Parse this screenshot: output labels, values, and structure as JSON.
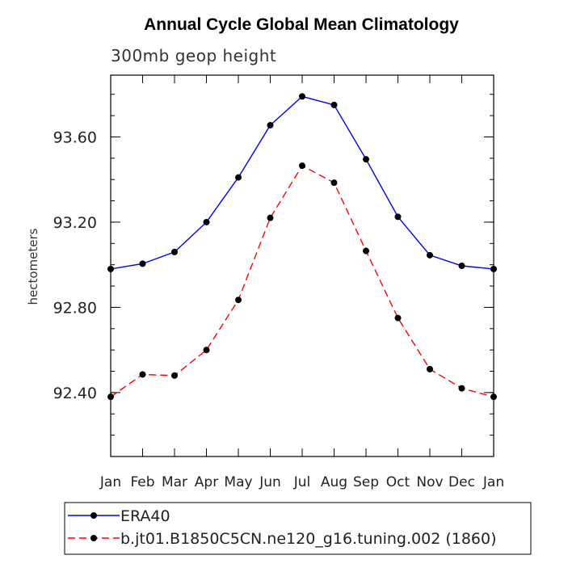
{
  "chart_data": {
    "type": "line",
    "title": "Annual Cycle Global Mean Climatology",
    "subtitle": "300mb geop height",
    "xlabel": "",
    "ylabel": "hectometers",
    "categories": [
      "Jan",
      "Feb",
      "Mar",
      "Apr",
      "May",
      "Jun",
      "Jul",
      "Aug",
      "Sep",
      "Oct",
      "Nov",
      "Dec",
      "Jan"
    ],
    "yticks": [
      "92.40",
      "92.80",
      "93.20",
      "93.60"
    ],
    "ylim": [
      92.1,
      93.89
    ],
    "grid": false,
    "legend_position": "bottom",
    "series": [
      {
        "name": "ERA40",
        "color": "#0000ff",
        "style": "solid",
        "values": [
          92.98,
          93.005,
          93.06,
          93.2,
          93.41,
          93.655,
          93.79,
          93.75,
          93.495,
          93.225,
          93.045,
          92.995,
          92.98
        ]
      },
      {
        "name": "b.jt01.B1850C5CN.ne120_g16.tuning.002 (1860)",
        "color": "#ff0000",
        "style": "dashed",
        "values": [
          92.38,
          92.485,
          92.48,
          92.6,
          92.835,
          93.22,
          93.465,
          93.385,
          93.065,
          92.75,
          92.51,
          92.42,
          92.38
        ]
      }
    ]
  }
}
